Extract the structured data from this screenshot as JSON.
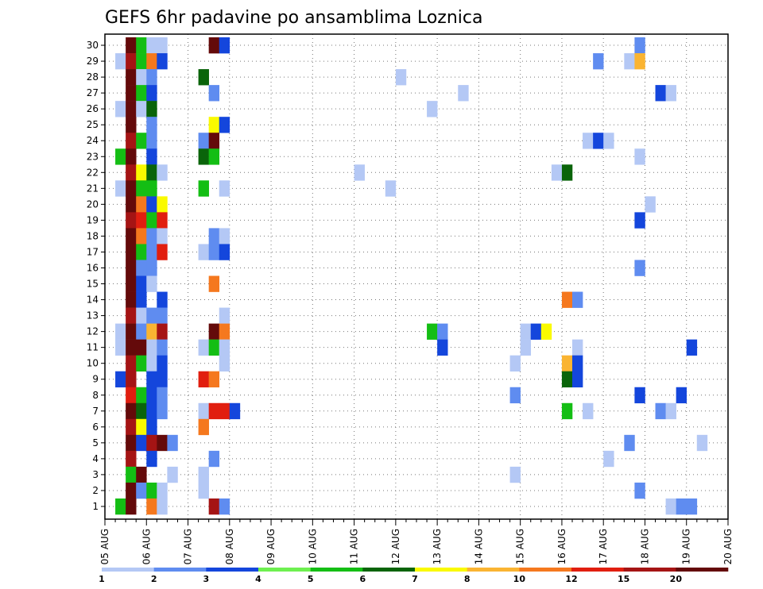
{
  "chart_data": {
    "type": "heatmap",
    "title": "GEFS 6hr padavine po ansamblima Loznica",
    "xlabel": "",
    "ylabel": "",
    "x_start": "05 AUG 00Z",
    "x_step_hours": 6,
    "x_ticks": [
      "05 AUG",
      "06 AUG",
      "07 AUG",
      "08 AUG",
      "09 AUG",
      "10 AUG",
      "11 AUG",
      "12 AUG",
      "13 AUG",
      "14 AUG",
      "15 AUG",
      "16 AUG",
      "17 AUG",
      "18 AUG",
      "19 AUG",
      "20 AUG"
    ],
    "y_ticks": [
      "1",
      "2",
      "3",
      "4",
      "5",
      "6",
      "7",
      "8",
      "9",
      "10",
      "11",
      "12",
      "13",
      "14",
      "15",
      "16",
      "17",
      "18",
      "19",
      "20",
      "21",
      "22",
      "23",
      "24",
      "25",
      "26",
      "27",
      "28",
      "29",
      "30"
    ],
    "members": 30,
    "grid": true,
    "colorbar": {
      "labels": [
        "1",
        "2",
        "3",
        "4",
        "5",
        "6",
        "7",
        "8",
        "10",
        "12",
        "15",
        "20"
      ],
      "colors": [
        "#b4c8f5",
        "#5f8cf0",
        "#1446dc",
        "#6ef050",
        "#14be14",
        "#0a640a",
        "#fafa00",
        "#fab432",
        "#f5781e",
        "#e11e0f",
        "#a51414",
        "#640a0a"
      ]
    },
    "cells": [
      {
        "member": 30,
        "index": 2,
        "value": 20
      },
      {
        "member": 30,
        "index": 3,
        "value": 5
      },
      {
        "member": 30,
        "index": 4,
        "value": 1
      },
      {
        "member": 30,
        "index": 5,
        "value": 1
      },
      {
        "member": 30,
        "index": 10,
        "value": 20
      },
      {
        "member": 30,
        "index": 11,
        "value": 3
      },
      {
        "member": 30,
        "index": 51,
        "value": 2
      },
      {
        "member": 29,
        "index": 1,
        "value": 1
      },
      {
        "member": 29,
        "index": 2,
        "value": 15
      },
      {
        "member": 29,
        "index": 3,
        "value": 5
      },
      {
        "member": 29,
        "index": 4,
        "value": 10
      },
      {
        "member": 29,
        "index": 5,
        "value": 3
      },
      {
        "member": 29,
        "index": 47,
        "value": 2
      },
      {
        "member": 29,
        "index": 50,
        "value": 1
      },
      {
        "member": 29,
        "index": 51,
        "value": 8
      },
      {
        "member": 28,
        "index": 2,
        "value": 20
      },
      {
        "member": 28,
        "index": 3,
        "value": 1
      },
      {
        "member": 28,
        "index": 4,
        "value": 2
      },
      {
        "member": 28,
        "index": 9,
        "value": 6
      },
      {
        "member": 28,
        "index": 28,
        "value": 1
      },
      {
        "member": 27,
        "index": 2,
        "value": 20
      },
      {
        "member": 27,
        "index": 3,
        "value": 5
      },
      {
        "member": 27,
        "index": 4,
        "value": 3
      },
      {
        "member": 27,
        "index": 10,
        "value": 2
      },
      {
        "member": 27,
        "index": 34,
        "value": 1
      },
      {
        "member": 27,
        "index": 53,
        "value": 3
      },
      {
        "member": 27,
        "index": 54,
        "value": 1
      },
      {
        "member": 26,
        "index": 1,
        "value": 1
      },
      {
        "member": 26,
        "index": 2,
        "value": 20
      },
      {
        "member": 26,
        "index": 3,
        "value": 1
      },
      {
        "member": 26,
        "index": 4,
        "value": 6
      },
      {
        "member": 26,
        "index": 31,
        "value": 1
      },
      {
        "member": 25,
        "index": 2,
        "value": 20
      },
      {
        "member": 25,
        "index": 4,
        "value": 2
      },
      {
        "member": 25,
        "index": 10,
        "value": 7
      },
      {
        "member": 25,
        "index": 11,
        "value": 3
      },
      {
        "member": 24,
        "index": 2,
        "value": 15
      },
      {
        "member": 24,
        "index": 3,
        "value": 5
      },
      {
        "member": 24,
        "index": 4,
        "value": 2
      },
      {
        "member": 24,
        "index": 9,
        "value": 2
      },
      {
        "member": 24,
        "index": 10,
        "value": 20
      },
      {
        "member": 24,
        "index": 46,
        "value": 1
      },
      {
        "member": 24,
        "index": 47,
        "value": 3
      },
      {
        "member": 24,
        "index": 48,
        "value": 1
      },
      {
        "member": 23,
        "index": 1,
        "value": 5
      },
      {
        "member": 23,
        "index": 2,
        "value": 20
      },
      {
        "member": 23,
        "index": 4,
        "value": 3
      },
      {
        "member": 23,
        "index": 9,
        "value": 6
      },
      {
        "member": 23,
        "index": 10,
        "value": 5
      },
      {
        "member": 23,
        "index": 51,
        "value": 1
      },
      {
        "member": 22,
        "index": 2,
        "value": 15
      },
      {
        "member": 22,
        "index": 3,
        "value": 7
      },
      {
        "member": 22,
        "index": 4,
        "value": 6
      },
      {
        "member": 22,
        "index": 5,
        "value": 1
      },
      {
        "member": 22,
        "index": 24,
        "value": 1
      },
      {
        "member": 22,
        "index": 43,
        "value": 1
      },
      {
        "member": 22,
        "index": 44,
        "value": 6
      },
      {
        "member": 21,
        "index": 1,
        "value": 1
      },
      {
        "member": 21,
        "index": 2,
        "value": 20
      },
      {
        "member": 21,
        "index": 3,
        "value": 5
      },
      {
        "member": 21,
        "index": 4,
        "value": 5
      },
      {
        "member": 21,
        "index": 9,
        "value": 5
      },
      {
        "member": 21,
        "index": 11,
        "value": 1
      },
      {
        "member": 21,
        "index": 27,
        "value": 1
      },
      {
        "member": 20,
        "index": 2,
        "value": 20
      },
      {
        "member": 20,
        "index": 3,
        "value": 10
      },
      {
        "member": 20,
        "index": 4,
        "value": 3
      },
      {
        "member": 20,
        "index": 5,
        "value": 7
      },
      {
        "member": 20,
        "index": 52,
        "value": 1
      },
      {
        "member": 19,
        "index": 2,
        "value": 15
      },
      {
        "member": 19,
        "index": 3,
        "value": 12
      },
      {
        "member": 19,
        "index": 4,
        "value": 5
      },
      {
        "member": 19,
        "index": 5,
        "value": 12
      },
      {
        "member": 19,
        "index": 51,
        "value": 3
      },
      {
        "member": 18,
        "index": 2,
        "value": 20
      },
      {
        "member": 18,
        "index": 3,
        "value": 10
      },
      {
        "member": 18,
        "index": 4,
        "value": 2
      },
      {
        "member": 18,
        "index": 5,
        "value": 1
      },
      {
        "member": 18,
        "index": 10,
        "value": 2
      },
      {
        "member": 18,
        "index": 11,
        "value": 1
      },
      {
        "member": 17,
        "index": 2,
        "value": 20
      },
      {
        "member": 17,
        "index": 3,
        "value": 5
      },
      {
        "member": 17,
        "index": 4,
        "value": 2
      },
      {
        "member": 17,
        "index": 5,
        "value": 12
      },
      {
        "member": 17,
        "index": 9,
        "value": 1
      },
      {
        "member": 17,
        "index": 10,
        "value": 2
      },
      {
        "member": 17,
        "index": 11,
        "value": 3
      },
      {
        "member": 16,
        "index": 2,
        "value": 20
      },
      {
        "member": 16,
        "index": 3,
        "value": 2
      },
      {
        "member": 16,
        "index": 4,
        "value": 2
      },
      {
        "member": 16,
        "index": 51,
        "value": 2
      },
      {
        "member": 15,
        "index": 2,
        "value": 20
      },
      {
        "member": 15,
        "index": 3,
        "value": 3
      },
      {
        "member": 15,
        "index": 4,
        "value": 1
      },
      {
        "member": 15,
        "index": 10,
        "value": 10
      },
      {
        "member": 14,
        "index": 2,
        "value": 20
      },
      {
        "member": 14,
        "index": 3,
        "value": 3
      },
      {
        "member": 14,
        "index": 5,
        "value": 3
      },
      {
        "member": 14,
        "index": 44,
        "value": 10
      },
      {
        "member": 14,
        "index": 45,
        "value": 2
      },
      {
        "member": 13,
        "index": 2,
        "value": 15
      },
      {
        "member": 13,
        "index": 3,
        "value": 1
      },
      {
        "member": 13,
        "index": 4,
        "value": 2
      },
      {
        "member": 13,
        "index": 5,
        "value": 2
      },
      {
        "member": 13,
        "index": 11,
        "value": 1
      },
      {
        "member": 12,
        "index": 1,
        "value": 1
      },
      {
        "member": 12,
        "index": 2,
        "value": 20
      },
      {
        "member": 12,
        "index": 3,
        "value": 2
      },
      {
        "member": 12,
        "index": 4,
        "value": 8
      },
      {
        "member": 12,
        "index": 5,
        "value": 15
      },
      {
        "member": 12,
        "index": 10,
        "value": 20
      },
      {
        "member": 12,
        "index": 11,
        "value": 10
      },
      {
        "member": 12,
        "index": 31,
        "value": 5
      },
      {
        "member": 12,
        "index": 32,
        "value": 2
      },
      {
        "member": 12,
        "index": 40,
        "value": 1
      },
      {
        "member": 12,
        "index": 41,
        "value": 3
      },
      {
        "member": 12,
        "index": 42,
        "value": 7
      },
      {
        "member": 11,
        "index": 1,
        "value": 1
      },
      {
        "member": 11,
        "index": 2,
        "value": 20
      },
      {
        "member": 11,
        "index": 3,
        "value": 20
      },
      {
        "member": 11,
        "index": 4,
        "value": 1
      },
      {
        "member": 11,
        "index": 5,
        "value": 2
      },
      {
        "member": 11,
        "index": 9,
        "value": 1
      },
      {
        "member": 11,
        "index": 10,
        "value": 5
      },
      {
        "member": 11,
        "index": 11,
        "value": 1
      },
      {
        "member": 11,
        "index": 32,
        "value": 3
      },
      {
        "member": 11,
        "index": 40,
        "value": 1
      },
      {
        "member": 11,
        "index": 45,
        "value": 1
      },
      {
        "member": 11,
        "index": 56,
        "value": 3
      },
      {
        "member": 10,
        "index": 2,
        "value": 15
      },
      {
        "member": 10,
        "index": 3,
        "value": 5
      },
      {
        "member": 10,
        "index": 4,
        "value": 1
      },
      {
        "member": 10,
        "index": 5,
        "value": 3
      },
      {
        "member": 10,
        "index": 11,
        "value": 1
      },
      {
        "member": 10,
        "index": 39,
        "value": 1
      },
      {
        "member": 10,
        "index": 44,
        "value": 8
      },
      {
        "member": 10,
        "index": 45,
        "value": 3
      },
      {
        "member": 9,
        "index": 1,
        "value": 3
      },
      {
        "member": 9,
        "index": 2,
        "value": 15
      },
      {
        "member": 9,
        "index": 4,
        "value": 3
      },
      {
        "member": 9,
        "index": 5,
        "value": 3
      },
      {
        "member": 9,
        "index": 9,
        "value": 12
      },
      {
        "member": 9,
        "index": 10,
        "value": 10
      },
      {
        "member": 9,
        "index": 44,
        "value": 6
      },
      {
        "member": 9,
        "index": 45,
        "value": 3
      },
      {
        "member": 8,
        "index": 2,
        "value": 12
      },
      {
        "member": 8,
        "index": 3,
        "value": 5
      },
      {
        "member": 8,
        "index": 4,
        "value": 3
      },
      {
        "member": 8,
        "index": 5,
        "value": 2
      },
      {
        "member": 8,
        "index": 39,
        "value": 2
      },
      {
        "member": 8,
        "index": 51,
        "value": 3
      },
      {
        "member": 8,
        "index": 55,
        "value": 3
      },
      {
        "member": 7,
        "index": 2,
        "value": 20
      },
      {
        "member": 7,
        "index": 3,
        "value": 6
      },
      {
        "member": 7,
        "index": 4,
        "value": 3
      },
      {
        "member": 7,
        "index": 5,
        "value": 2
      },
      {
        "member": 7,
        "index": 9,
        "value": 1
      },
      {
        "member": 7,
        "index": 10,
        "value": 12
      },
      {
        "member": 7,
        "index": 11,
        "value": 12
      },
      {
        "member": 7,
        "index": 12,
        "value": 3
      },
      {
        "member": 7,
        "index": 44,
        "value": 5
      },
      {
        "member": 7,
        "index": 46,
        "value": 1
      },
      {
        "member": 7,
        "index": 53,
        "value": 2
      },
      {
        "member": 7,
        "index": 54,
        "value": 1
      },
      {
        "member": 6,
        "index": 2,
        "value": 15
      },
      {
        "member": 6,
        "index": 3,
        "value": 7
      },
      {
        "member": 6,
        "index": 4,
        "value": 3
      },
      {
        "member": 6,
        "index": 9,
        "value": 10
      },
      {
        "member": 5,
        "index": 2,
        "value": 20
      },
      {
        "member": 5,
        "index": 3,
        "value": 3
      },
      {
        "member": 5,
        "index": 4,
        "value": 15
      },
      {
        "member": 5,
        "index": 5,
        "value": 20
      },
      {
        "member": 5,
        "index": 6,
        "value": 2
      },
      {
        "member": 5,
        "index": 50,
        "value": 2
      },
      {
        "member": 5,
        "index": 57,
        "value": 1
      },
      {
        "member": 4,
        "index": 2,
        "value": 15
      },
      {
        "member": 4,
        "index": 4,
        "value": 3
      },
      {
        "member": 4,
        "index": 10,
        "value": 2
      },
      {
        "member": 4,
        "index": 48,
        "value": 1
      },
      {
        "member": 3,
        "index": 2,
        "value": 5
      },
      {
        "member": 3,
        "index": 3,
        "value": 20
      },
      {
        "member": 3,
        "index": 6,
        "value": 1
      },
      {
        "member": 3,
        "index": 9,
        "value": 1
      },
      {
        "member": 3,
        "index": 39,
        "value": 1
      },
      {
        "member": 2,
        "index": 2,
        "value": 20
      },
      {
        "member": 2,
        "index": 3,
        "value": 2
      },
      {
        "member": 2,
        "index": 4,
        "value": 5
      },
      {
        "member": 2,
        "index": 5,
        "value": 1
      },
      {
        "member": 2,
        "index": 9,
        "value": 1
      },
      {
        "member": 2,
        "index": 51,
        "value": 2
      },
      {
        "member": 1,
        "index": 1,
        "value": 5
      },
      {
        "member": 1,
        "index": 2,
        "value": 20
      },
      {
        "member": 1,
        "index": 4,
        "value": 10
      },
      {
        "member": 1,
        "index": 5,
        "value": 1
      },
      {
        "member": 1,
        "index": 10,
        "value": 15
      },
      {
        "member": 1,
        "index": 11,
        "value": 2
      },
      {
        "member": 1,
        "index": 54,
        "value": 1
      },
      {
        "member": 1,
        "index": 55,
        "value": 2
      },
      {
        "member": 1,
        "index": 56,
        "value": 2
      }
    ]
  }
}
